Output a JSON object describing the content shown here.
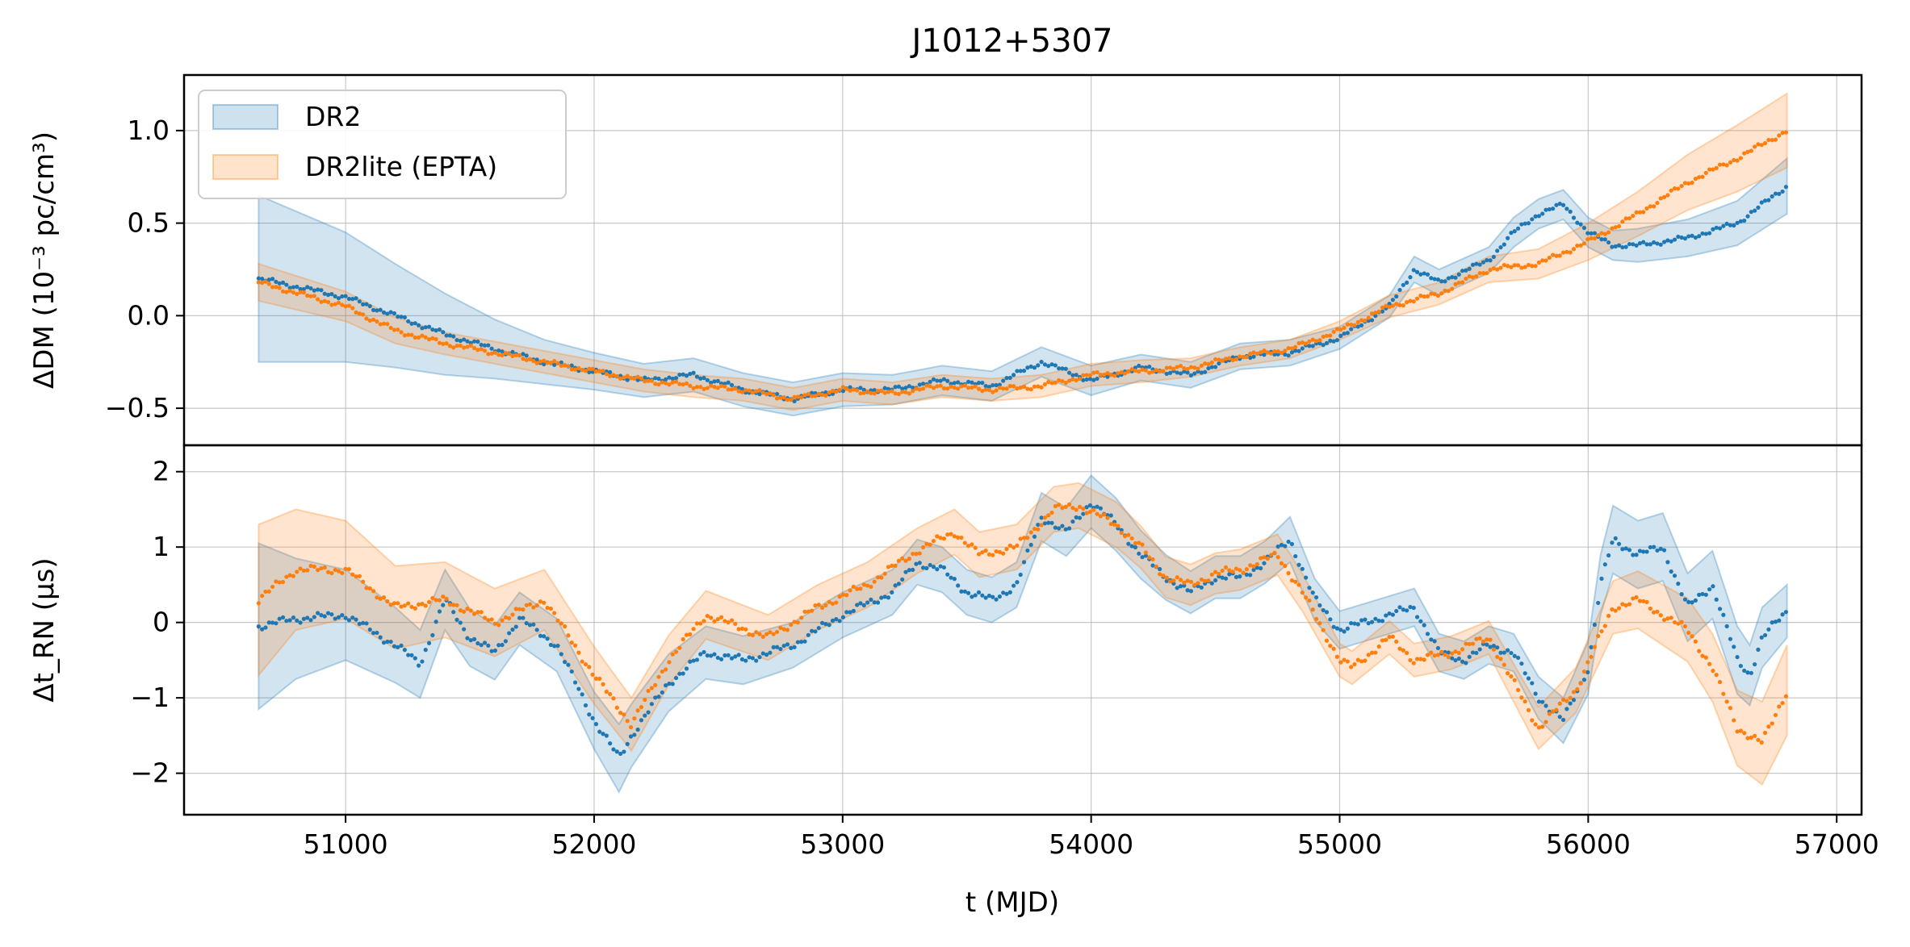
{
  "chart_data": {
    "type": "line",
    "title": "J1012+5307",
    "xlabel": "t (MJD)",
    "xlim": [
      50350,
      57100
    ],
    "xticks": [
      51000,
      52000,
      53000,
      54000,
      55000,
      56000,
      57000
    ],
    "xtick_labels": [
      "51000",
      "52000",
      "53000",
      "54000",
      "55000",
      "56000",
      "57000"
    ],
    "grid": true,
    "legend": {
      "placement": "top-left",
      "entries": [
        "DR2",
        "DR2lite (EPTA)"
      ]
    },
    "colors": {
      "DR2": "#1f77b4",
      "DR2lite": "#ff7f0e"
    },
    "panels": [
      {
        "name": "dm",
        "ylabel": "ΔDM (10⁻³ pc/cm³)",
        "ylim": [
          -0.7,
          1.3
        ],
        "yticks": [
          -0.5,
          0.0,
          0.5,
          1.0
        ],
        "ytick_labels": [
          "−0.5",
          "0.0",
          "0.5",
          "1.0"
        ],
        "series": [
          {
            "name": "DR2",
            "x": [
              50650,
              51000,
              51200,
              51400,
              51600,
              51800,
              52000,
              52200,
              52400,
              52600,
              52800,
              53000,
              53200,
              53400,
              53600,
              53800,
              54000,
              54200,
              54400,
              54600,
              54800,
              55000,
              55200,
              55300,
              55400,
              55600,
              55700,
              55800,
              55900,
              56000,
              56100,
              56200,
              56400,
              56600,
              56800
            ],
            "y": [
              0.2,
              0.1,
              0.0,
              -0.1,
              -0.18,
              -0.25,
              -0.3,
              -0.35,
              -0.32,
              -0.4,
              -0.45,
              -0.4,
              -0.4,
              -0.35,
              -0.38,
              -0.25,
              -0.35,
              -0.28,
              -0.32,
              -0.22,
              -0.2,
              -0.12,
              0.05,
              0.25,
              0.18,
              0.3,
              0.45,
              0.55,
              0.6,
              0.45,
              0.38,
              0.38,
              0.42,
              0.5,
              0.7
            ],
            "err": [
              0.45,
              0.35,
              0.28,
              0.22,
              0.16,
              0.12,
              0.1,
              0.09,
              0.09,
              0.09,
              0.09,
              0.09,
              0.08,
              0.08,
              0.08,
              0.08,
              0.08,
              0.07,
              0.07,
              0.07,
              0.07,
              0.06,
              0.06,
              0.07,
              0.07,
              0.07,
              0.08,
              0.08,
              0.08,
              0.08,
              0.08,
              0.09,
              0.1,
              0.12,
              0.15
            ]
          },
          {
            "name": "DR2lite (EPTA)",
            "x": [
              50650,
              51000,
              51200,
              51400,
              51600,
              51800,
              52000,
              52200,
              52400,
              52600,
              52800,
              53000,
              53200,
              53400,
              53600,
              53800,
              54000,
              54200,
              54400,
              54600,
              54800,
              55000,
              55200,
              55400,
              55600,
              55800,
              56000,
              56200,
              56400,
              56600,
              56800
            ],
            "y": [
              0.18,
              0.05,
              -0.08,
              -0.15,
              -0.2,
              -0.25,
              -0.3,
              -0.35,
              -0.38,
              -0.4,
              -0.45,
              -0.4,
              -0.42,
              -0.38,
              -0.4,
              -0.38,
              -0.32,
              -0.3,
              -0.28,
              -0.22,
              -0.18,
              -0.08,
              0.05,
              0.12,
              0.25,
              0.28,
              0.4,
              0.55,
              0.72,
              0.85,
              1.0
            ],
            "err": [
              0.1,
              0.08,
              0.07,
              0.06,
              0.06,
              0.06,
              0.06,
              0.06,
              0.06,
              0.06,
              0.06,
              0.06,
              0.06,
              0.06,
              0.06,
              0.06,
              0.06,
              0.06,
              0.05,
              0.05,
              0.05,
              0.05,
              0.06,
              0.06,
              0.07,
              0.08,
              0.1,
              0.12,
              0.15,
              0.18,
              0.2
            ]
          }
        ]
      },
      {
        "name": "rn",
        "ylabel": "Δt_RN (μs)",
        "ylim": [
          -2.55,
          2.35
        ],
        "yticks": [
          -2,
          -1,
          0,
          1,
          2
        ],
        "ytick_labels": [
          "−2",
          "−1",
          "0",
          "1",
          "2"
        ],
        "series": [
          {
            "name": "DR2",
            "x": [
              50650,
              50800,
              51000,
              51200,
              51300,
              51400,
              51500,
              51600,
              51700,
              51850,
              52000,
              52100,
              52150,
              52300,
              52450,
              52600,
              52800,
              53000,
              53200,
              53300,
              53400,
              53500,
              53600,
              53700,
              53800,
              53900,
              54000,
              54100,
              54200,
              54300,
              54400,
              54500,
              54600,
              54700,
              54800,
              54900,
              55000,
              55100,
              55300,
              55400,
              55500,
              55600,
              55700,
              55800,
              55900,
              56000,
              56050,
              56100,
              56200,
              56300,
              56400,
              56500,
              56600,
              56650,
              56700,
              56800
            ],
            "y": [
              -0.05,
              0.05,
              0.1,
              -0.3,
              -0.55,
              0.3,
              -0.2,
              -0.4,
              0.05,
              -0.3,
              -1.3,
              -1.8,
              -1.5,
              -0.8,
              -0.4,
              -0.5,
              -0.3,
              0.1,
              0.4,
              0.8,
              0.7,
              0.4,
              0.3,
              0.5,
              1.4,
              1.2,
              1.6,
              1.3,
              0.9,
              0.6,
              0.4,
              0.6,
              0.6,
              0.8,
              1.1,
              0.3,
              -0.1,
              0.0,
              0.2,
              -0.4,
              -0.5,
              -0.3,
              -0.4,
              -1.0,
              -1.3,
              -0.6,
              0.5,
              1.1,
              0.9,
              1.0,
              0.2,
              0.5,
              -0.5,
              -0.7,
              -0.2,
              0.15
            ],
            "err": [
              1.1,
              0.8,
              0.6,
              0.5,
              0.45,
              0.4,
              0.38,
              0.36,
              0.35,
              0.35,
              0.38,
              0.45,
              0.42,
              0.38,
              0.35,
              0.32,
              0.3,
              0.3,
              0.3,
              0.3,
              0.3,
              0.3,
              0.3,
              0.3,
              0.32,
              0.32,
              0.35,
              0.35,
              0.32,
              0.3,
              0.28,
              0.28,
              0.28,
              0.28,
              0.3,
              0.28,
              0.25,
              0.25,
              0.25,
              0.25,
              0.25,
              0.25,
              0.25,
              0.28,
              0.3,
              0.35,
              0.4,
              0.45,
              0.45,
              0.45,
              0.45,
              0.45,
              0.45,
              0.4,
              0.4,
              0.35
            ]
          },
          {
            "name": "DR2lite (EPTA)",
            "x": [
              50650,
              50800,
              51000,
              51200,
              51400,
              51600,
              51800,
              52000,
              52150,
              52300,
              52450,
              52700,
              52900,
              53100,
              53300,
              53450,
              53550,
              53700,
              53850,
              53950,
              54100,
              54200,
              54300,
              54400,
              54500,
              54600,
              54750,
              54850,
              55000,
              55050,
              55200,
              55300,
              55450,
              55600,
              55700,
              55800,
              55950,
              56100,
              56200,
              56400,
              56500,
              56600,
              56700,
              56800
            ],
            "y": [
              0.3,
              0.7,
              0.7,
              0.2,
              0.3,
              0.0,
              0.3,
              -0.7,
              -1.35,
              -0.5,
              0.1,
              -0.2,
              0.2,
              0.5,
              0.95,
              1.2,
              0.9,
              1.0,
              1.5,
              1.55,
              1.3,
              1.0,
              0.6,
              0.5,
              0.65,
              0.7,
              0.9,
              0.4,
              -0.5,
              -0.6,
              -0.2,
              -0.5,
              -0.4,
              -0.2,
              -0.8,
              -1.4,
              -0.9,
              0.2,
              0.3,
              -0.1,
              -0.6,
              -1.4,
              -1.6,
              -0.9
            ],
            "err": [
              1.0,
              0.8,
              0.65,
              0.55,
              0.5,
              0.45,
              0.4,
              0.38,
              0.35,
              0.33,
              0.32,
              0.3,
              0.3,
              0.3,
              0.3,
              0.3,
              0.3,
              0.3,
              0.3,
              0.3,
              0.3,
              0.28,
              0.27,
              0.27,
              0.27,
              0.27,
              0.27,
              0.25,
              0.22,
              0.22,
              0.22,
              0.22,
              0.22,
              0.22,
              0.25,
              0.28,
              0.3,
              0.35,
              0.38,
              0.42,
              0.45,
              0.5,
              0.55,
              0.6
            ]
          }
        ]
      }
    ]
  }
}
